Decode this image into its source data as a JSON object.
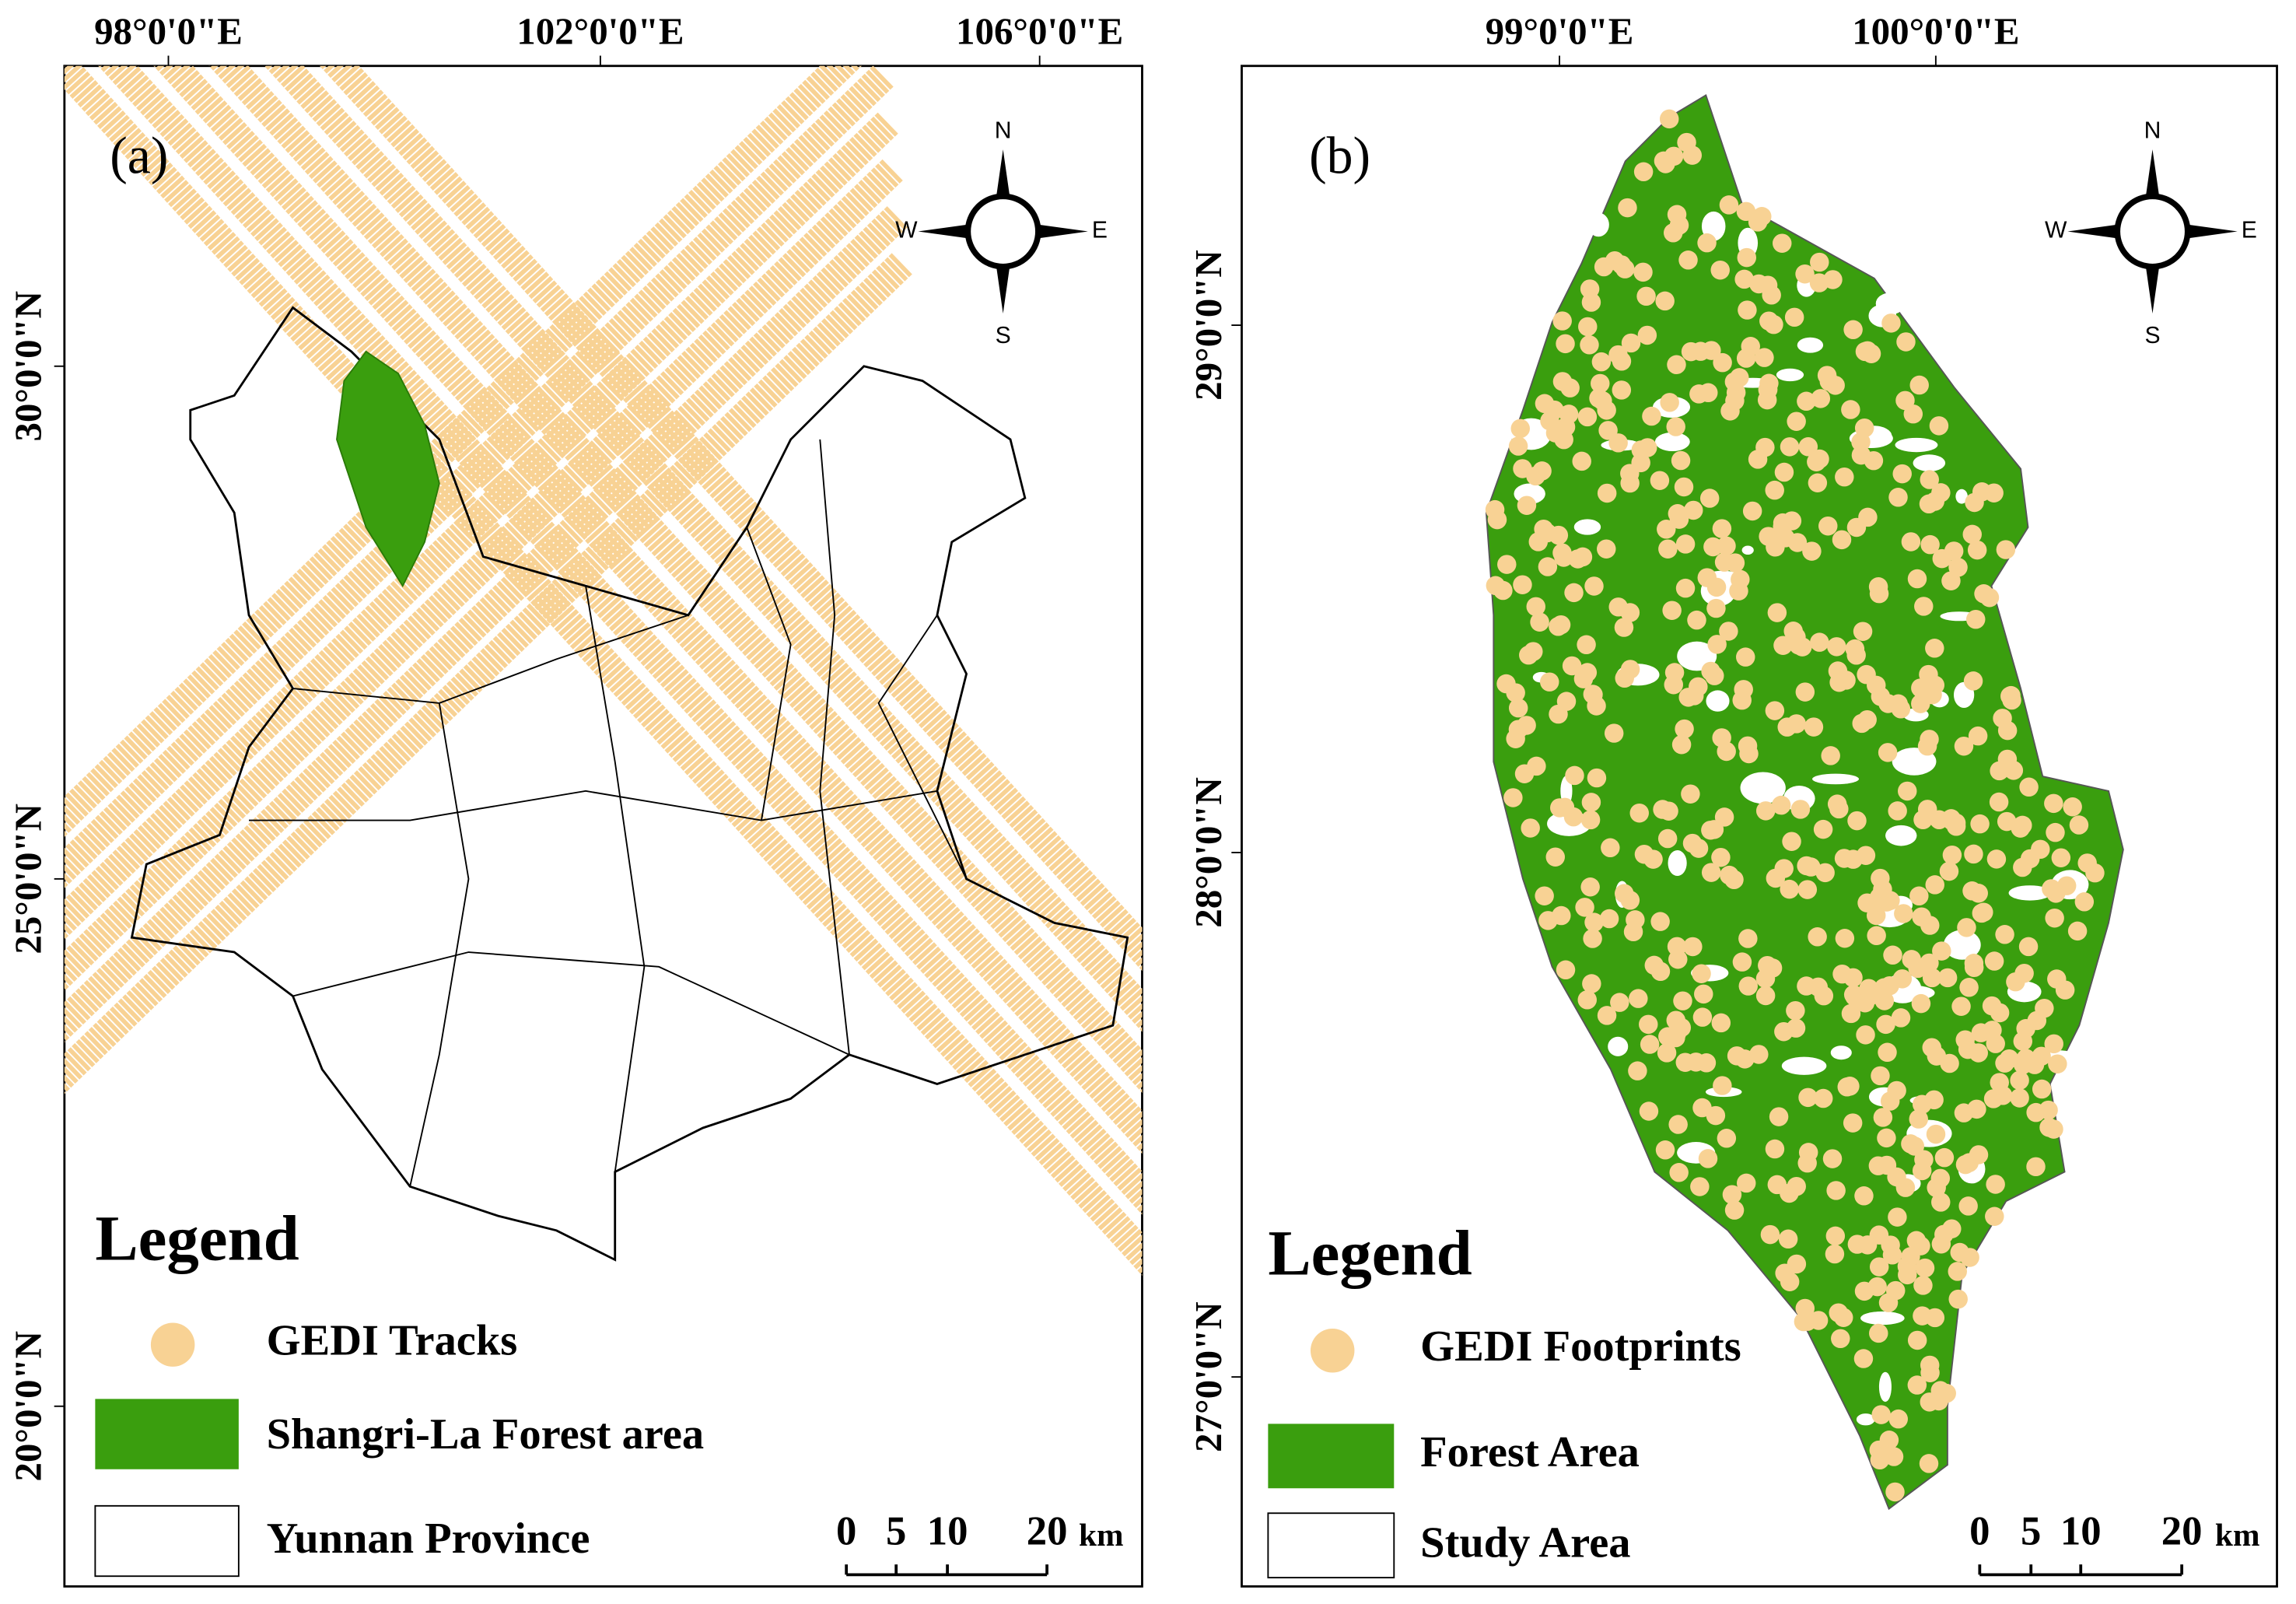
{
  "panels": [
    {
      "label": "(a)",
      "lon_labels": [
        "98°0'0\"E",
        "102°0'0\"E",
        "106°0'0\"E"
      ],
      "lat_labels": [
        "30°0'0\"N",
        "25°0'0\"N",
        "20°0'0\"N"
      ],
      "compass": {
        "n": "N",
        "s": "S",
        "e": "E",
        "w": "W"
      },
      "legend": {
        "title": "Legend",
        "items": [
          "GEDI Tracks",
          "Shangri-La Forest area",
          "Yunnan Province"
        ]
      },
      "scale": {
        "ticks": [
          0,
          5,
          10,
          20
        ],
        "unit": "km"
      }
    },
    {
      "label": "(b)",
      "lon_labels": [
        "99°0'0\"E",
        "100°0'0\"E"
      ],
      "lat_labels": [
        "29°0'0\"N",
        "28°0'0\"N",
        "27°0'0\"N"
      ],
      "compass": {
        "n": "N",
        "s": "S",
        "e": "E",
        "w": "W"
      },
      "legend": {
        "title": "Legend",
        "items": [
          "GEDI Footprints",
          "Forest Area",
          "Study Area"
        ]
      },
      "scale": {
        "ticks": [
          0,
          5,
          10,
          20
        ],
        "unit": "km"
      }
    }
  ]
}
